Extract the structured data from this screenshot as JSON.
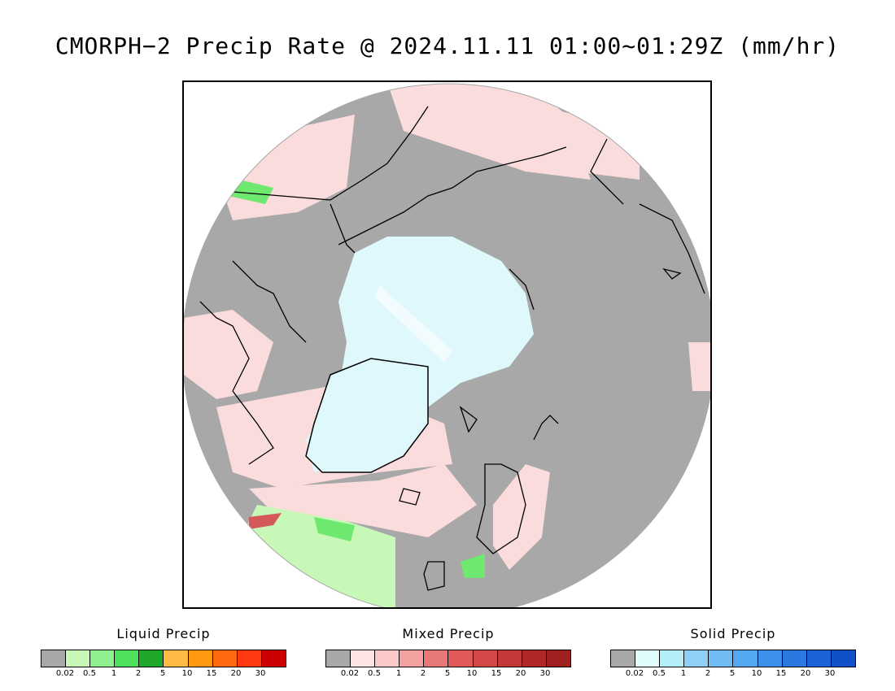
{
  "title": "CMORPH−2 Precip Rate @ 2024.11.11 01:00~01:29Z (mm/hr)",
  "map": {
    "projection": "north polar stereographic",
    "colors": {
      "no_precip": "#a8a8a8",
      "sea_ice_solid": "#dff8fc",
      "mixed_light": "#fbdcdc",
      "liquid_light": "#c8f8b8",
      "liquid_med": "#6ee86e",
      "liquid_heavy": "#22aa22",
      "mixed_heavy": "#d45a5a",
      "coastline": "#000000"
    }
  },
  "legends": [
    {
      "title": "Liquid Precip",
      "colors": [
        "#a8a8a8",
        "#c8f8b8",
        "#8ef08e",
        "#4ee05a",
        "#20a82a",
        "#ffbb44",
        "#ff9a10",
        "#ff6a10",
        "#ff3a10",
        "#cc0000"
      ],
      "ticks": [
        "0.02",
        "0.5",
        "1",
        "2",
        "5",
        "10",
        "15",
        "20",
        "30"
      ]
    },
    {
      "title": "Mixed Precip",
      "colors": [
        "#a8a8a8",
        "#fde4e4",
        "#fbc8c8",
        "#f2a0a0",
        "#e87878",
        "#e05a5a",
        "#d44848",
        "#c43838",
        "#b02828",
        "#a02020"
      ],
      "ticks": [
        "0.02",
        "0.5",
        "1",
        "2",
        "5",
        "10",
        "15",
        "20",
        "30"
      ]
    },
    {
      "title": "Solid Precip",
      "colors": [
        "#a8a8a8",
        "#e0fcfc",
        "#b4eef8",
        "#8ed0f6",
        "#70bcf4",
        "#54a8f0",
        "#3c90ea",
        "#2a78e0",
        "#1c62d8",
        "#1050c8"
      ],
      "ticks": [
        "0.02",
        "0.5",
        "1",
        "2",
        "5",
        "10",
        "15",
        "20",
        "30"
      ]
    }
  ]
}
